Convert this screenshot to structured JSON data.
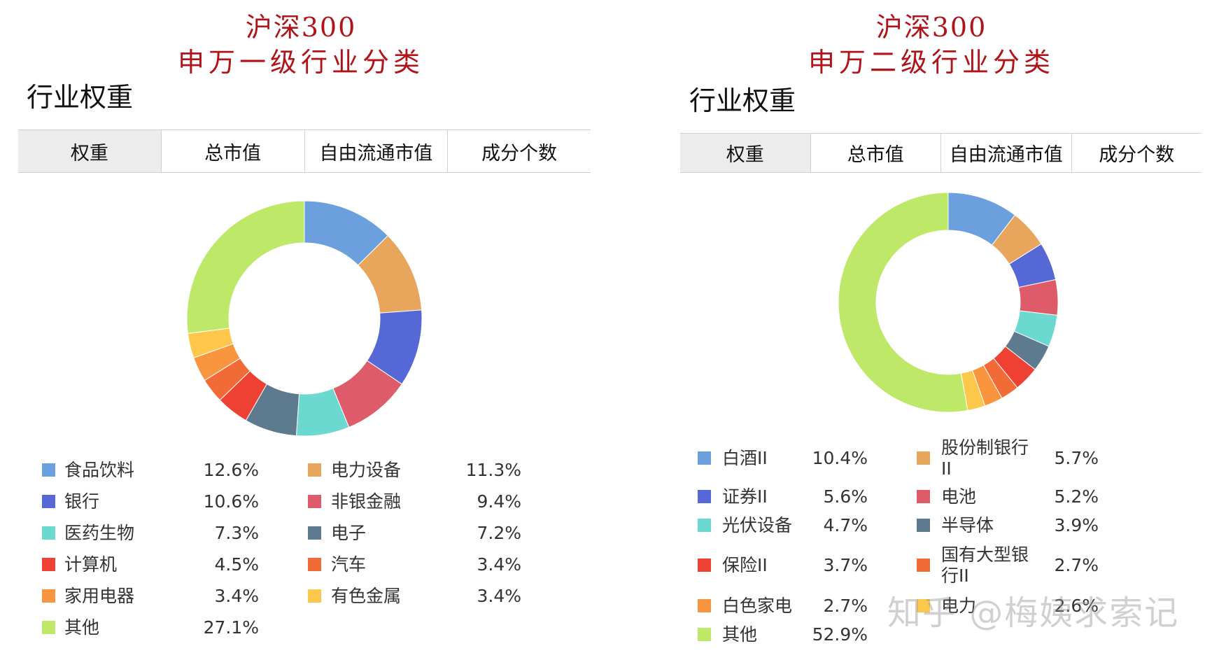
{
  "left": {
    "title_line1": "沪深300",
    "title_line2": "申万一级行业分类",
    "section_label": "行业权重",
    "tabs": [
      "权重",
      "总市值",
      "自由流通市值",
      "成分个数"
    ],
    "active_tab": 0
  },
  "right": {
    "title_line1": "沪深300",
    "title_line2": "申万二级行业分类",
    "section_label": "行业权重",
    "tabs": [
      "权重",
      "总市值",
      "自由流通市值",
      "成分个数"
    ],
    "active_tab": 0
  },
  "chart_data": [
    {
      "type": "pie",
      "title": "",
      "donut": true,
      "legend_position": "bottom",
      "series": [
        {
          "name": "食品饮料",
          "value": 12.6,
          "label": "12.6%",
          "color": "#6b9fde"
        },
        {
          "name": "电力设备",
          "value": 11.3,
          "label": "11.3%",
          "color": "#e8a55c"
        },
        {
          "name": "银行",
          "value": 10.6,
          "label": "10.6%",
          "color": "#5568d6"
        },
        {
          "name": "非银金融",
          "value": 9.4,
          "label": "9.4%",
          "color": "#de5c6a"
        },
        {
          "name": "医药生物",
          "value": 7.3,
          "label": "7.3%",
          "color": "#6cd9d0"
        },
        {
          "name": "电子",
          "value": 7.2,
          "label": "7.2%",
          "color": "#5e7a8e"
        },
        {
          "name": "计算机",
          "value": 4.5,
          "label": "4.5%",
          "color": "#ef4133"
        },
        {
          "name": "汽车",
          "value": 3.4,
          "label": "3.4%",
          "color": "#f26a35"
        },
        {
          "name": "家用电器",
          "value": 3.4,
          "label": "3.4%",
          "color": "#f8953e"
        },
        {
          "name": "有色金属",
          "value": 3.4,
          "label": "3.4%",
          "color": "#fcc74a"
        },
        {
          "name": "其他",
          "value": 27.1,
          "label": "27.1%",
          "color": "#bde868"
        }
      ]
    },
    {
      "type": "pie",
      "title": "",
      "donut": true,
      "legend_position": "bottom",
      "series": [
        {
          "name": "白酒II",
          "value": 10.4,
          "label": "10.4%",
          "color": "#6b9fde"
        },
        {
          "name": "股份制银行II",
          "value": 5.7,
          "label": "5.7%",
          "color": "#e8a55c"
        },
        {
          "name": "证券II",
          "value": 5.6,
          "label": "5.6%",
          "color": "#5568d6"
        },
        {
          "name": "电池",
          "value": 5.2,
          "label": "5.2%",
          "color": "#de5c6a"
        },
        {
          "name": "光伏设备",
          "value": 4.7,
          "label": "4.7%",
          "color": "#6cd9d0"
        },
        {
          "name": "半导体",
          "value": 3.9,
          "label": "3.9%",
          "color": "#5e7a8e"
        },
        {
          "name": "保险II",
          "value": 3.7,
          "label": "3.7%",
          "color": "#ef4133"
        },
        {
          "name": "国有大型银行II",
          "value": 2.7,
          "label": "2.7%",
          "color": "#f26a35"
        },
        {
          "name": "白色家电",
          "value": 2.7,
          "label": "2.7%",
          "color": "#f8953e"
        },
        {
          "name": "电力",
          "value": 2.6,
          "label": "2.6%",
          "color": "#fcc74a"
        },
        {
          "name": "其他",
          "value": 52.9,
          "label": "52.9%",
          "color": "#bde868"
        }
      ]
    }
  ],
  "watermark": "知乎 @梅姨求索记"
}
